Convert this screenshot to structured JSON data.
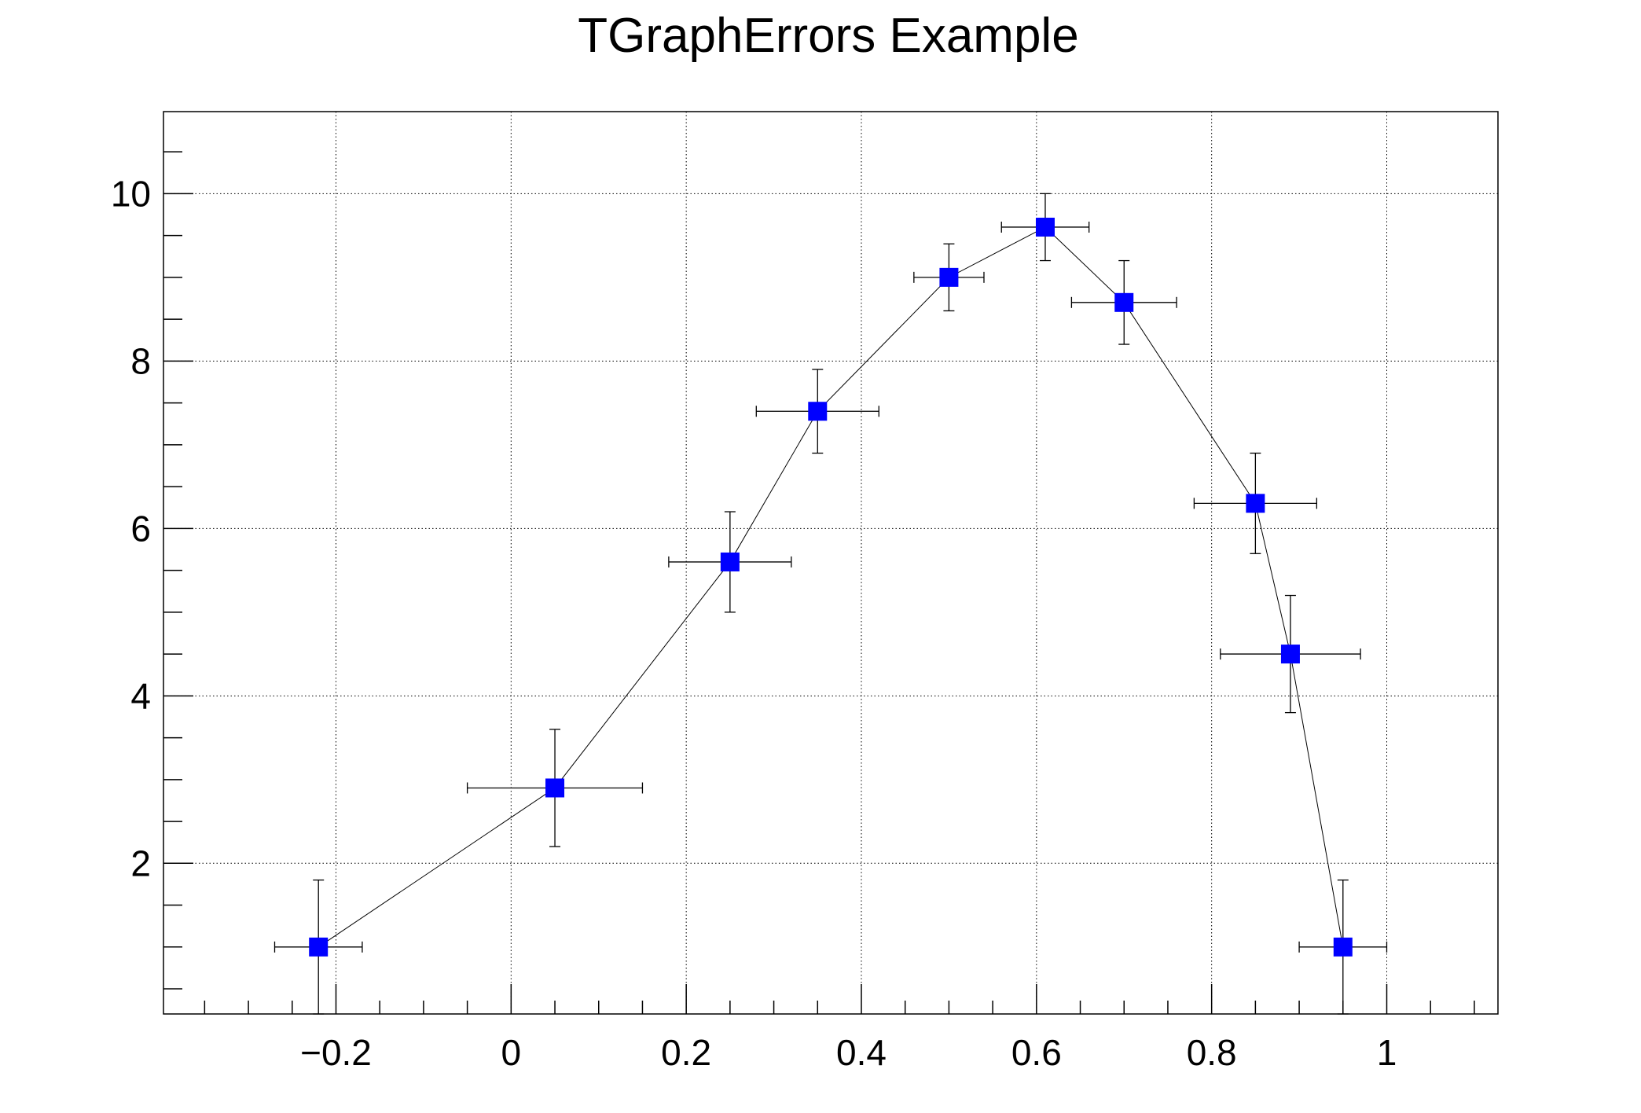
{
  "chart_data": {
    "type": "scatter",
    "title": "TGraphErrors Example",
    "xlabel": "",
    "ylabel": "",
    "xlim": [
      -0.397,
      1.127
    ],
    "ylim": [
      0.2,
      10.98
    ],
    "grid": true,
    "x_ticks": [
      -0.2,
      0,
      0.2,
      0.4,
      0.6,
      0.8,
      1
    ],
    "x_tick_labels": [
      "−0.2",
      "0",
      "0.2",
      "0.4",
      "0.6",
      "0.8",
      "1"
    ],
    "y_ticks": [
      2,
      4,
      6,
      8,
      10
    ],
    "y_tick_labels": [
      "2",
      "4",
      "6",
      "8",
      "10"
    ],
    "marker_color": "#0000ff",
    "line_color": "#000000",
    "marker": "square",
    "series": [
      {
        "x": [
          -0.22,
          0.05,
          0.25,
          0.35,
          0.5,
          0.61,
          0.7,
          0.85,
          0.89,
          0.95
        ],
        "y": [
          1,
          2.9,
          5.6,
          7.4,
          9,
          9.6,
          8.7,
          6.3,
          4.5,
          1
        ],
        "ex": [
          0.05,
          0.1,
          0.07,
          0.07,
          0.04,
          0.05,
          0.06,
          0.07,
          0.08,
          0.05
        ],
        "ey": [
          0.8,
          0.7,
          0.6,
          0.5,
          0.4,
          0.4,
          0.5,
          0.6,
          0.7,
          0.8
        ]
      }
    ]
  }
}
